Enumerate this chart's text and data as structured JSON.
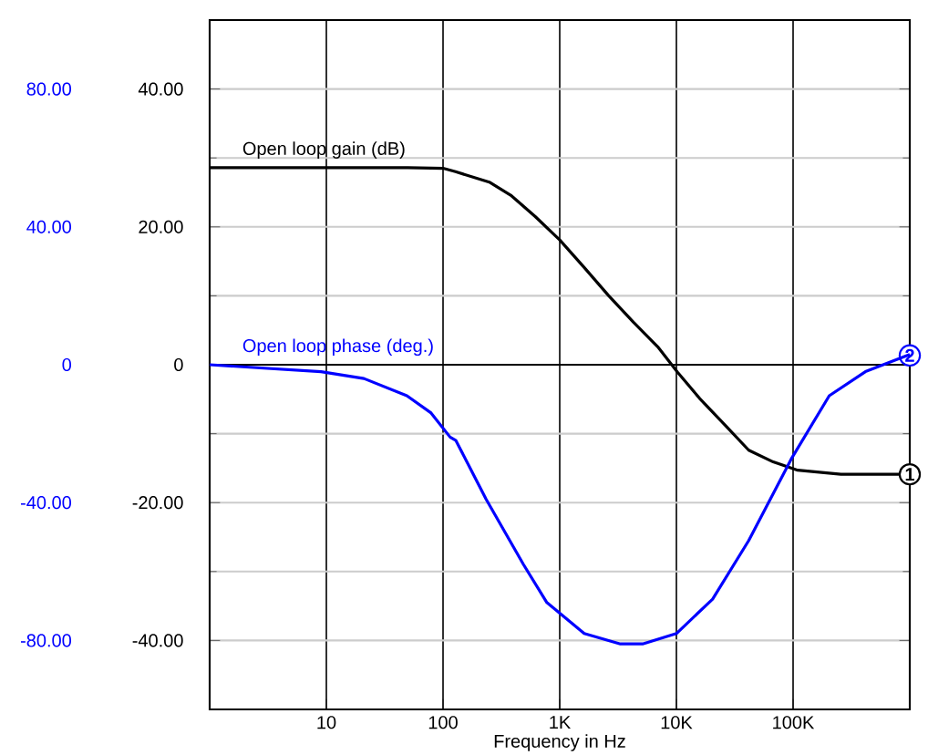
{
  "chart_data": {
    "type": "line",
    "xlabel": "Frequency in Hz",
    "log": "x",
    "grid": true,
    "xlim": [
      1,
      1000000
    ],
    "ylim": [
      -50,
      50
    ],
    "y2lim": [
      -100,
      100
    ],
    "xticks": [
      10,
      100,
      {
        "value": 1000,
        "label": "1K"
      },
      {
        "value": 10000,
        "label": "10K"
      },
      {
        "value": 100000,
        "label": "100K"
      }
    ],
    "yticks": [
      {
        "value": -40,
        "label": "-40.00"
      },
      {
        "value": -20,
        "label": "-20.00"
      },
      0,
      {
        "value": 20,
        "label": "20.00"
      },
      {
        "value": 40,
        "label": "40.00"
      }
    ],
    "y2ticks": [
      {
        "value": -80,
        "label": "-80.00"
      },
      {
        "value": -40,
        "label": "-40.00"
      },
      0,
      {
        "value": 40,
        "label": "40.00"
      },
      {
        "value": 80,
        "label": "80.00"
      }
    ],
    "ref_lines": [
      {
        "axis": "y",
        "value": 0,
        "color": "#000000"
      }
    ],
    "series": [
      {
        "name": "Open loop gain (dB)",
        "color": "#000000",
        "x": [
          1,
          50,
          100,
          128,
          249,
          380,
          617,
          1000,
          1622,
          2630,
          4266,
          6918,
          10233,
          15849,
          26303,
          41687,
          67608,
          109648,
          257040,
          1000000
        ],
        "values": [
          28.6,
          28.6,
          28.5,
          28.0,
          26.5,
          24.6,
          21.5,
          18.1,
          14.1,
          10.0,
          6.2,
          2.6,
          -1.1,
          -4.9,
          -8.8,
          -12.4,
          -14.1,
          -15.3,
          -15.9,
          -15.9
        ]
      },
      {
        "name": "Open loop phase (deg.)",
        "color": "#0000ff",
        "axis": "y2",
        "x": [
          1,
          9,
          21,
          49,
          79,
          115,
          129,
          234,
          490,
          776,
          1622,
          3311,
          5129,
          10000,
          20417,
          41687,
          97724,
          204174,
          416869,
          1000000
        ],
        "values": [
          0,
          -2,
          -4,
          -9,
          -14,
          -21,
          -22,
          -39,
          -58,
          -69,
          -78,
          -81,
          -81,
          -78,
          -68,
          -51,
          -27,
          -9,
          -2,
          3
        ]
      }
    ],
    "annotations": [
      {
        "text": "1",
        "x": 1000000,
        "y": -15.9
      },
      {
        "text": "2",
        "x": 1000000,
        "y": 1.35
      }
    ]
  }
}
